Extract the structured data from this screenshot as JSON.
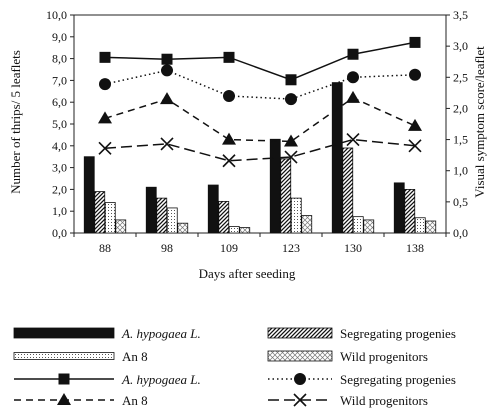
{
  "chart_data": {
    "type": "bar",
    "categories": [
      "88",
      "98",
      "109",
      "123",
      "130",
      "138"
    ],
    "xlabel": "Days after seeding",
    "ylabel_left": "Number of thrips/ 5 leaflets",
    "ylabel_right": "Visual symptom score/leaflet",
    "ylim_left": [
      0,
      10
    ],
    "ylim_right": [
      0,
      3.5
    ],
    "yticks_left": [
      "0,0",
      "1,0",
      "2,0",
      "3,0",
      "4,0",
      "5,0",
      "6,0",
      "7,0",
      "8,0",
      "9,0",
      "10,0"
    ],
    "yticks_right": [
      "0,0",
      "0,5",
      "1,0",
      "1,5",
      "2,0",
      "2,5",
      "3,0",
      "3,5"
    ],
    "bar_series": [
      {
        "name": "A. hypogaea L.",
        "italic": true,
        "pattern": "solid",
        "values": [
          3.5,
          2.1,
          2.2,
          4.3,
          6.9,
          2.3
        ]
      },
      {
        "name": "Segregating progenies",
        "italic": false,
        "pattern": "diag",
        "values": [
          1.9,
          1.6,
          1.45,
          3.4,
          3.9,
          2.0
        ]
      },
      {
        "name": "An 8",
        "italic": false,
        "pattern": "dots",
        "values": [
          1.4,
          1.15,
          0.3,
          1.6,
          0.75,
          0.7
        ]
      },
      {
        "name": "Wild progenitors",
        "italic": false,
        "pattern": "cross",
        "values": [
          0.6,
          0.45,
          0.25,
          0.8,
          0.6,
          0.55
        ]
      }
    ],
    "line_series": [
      {
        "name": "A. hypogaea L.",
        "italic": true,
        "marker": "square",
        "dash": "solid",
        "values": [
          2.82,
          2.79,
          2.82,
          2.46,
          2.87,
          3.06
        ]
      },
      {
        "name": "Segregating progenies",
        "italic": false,
        "marker": "circle",
        "dash": "dotted",
        "values": [
          2.39,
          2.61,
          2.2,
          2.15,
          2.5,
          2.54
        ]
      },
      {
        "name": "An 8",
        "italic": false,
        "marker": "triangle",
        "dash": "dashed",
        "values": [
          1.84,
          2.15,
          1.5,
          1.47,
          2.17,
          1.72
        ]
      },
      {
        "name": "Wild progenitors",
        "italic": false,
        "marker": "x",
        "dash": "longdash",
        "values": [
          1.36,
          1.43,
          1.16,
          1.22,
          1.5,
          1.4
        ]
      }
    ]
  },
  "legend": {
    "bars_left": [
      {
        "label": "A. hypogaea L.",
        "italic": true,
        "series": 0
      },
      {
        "label": "An 8",
        "italic": false,
        "series": 2
      }
    ],
    "bars_right": [
      {
        "label": "Segregating progenies",
        "italic": false,
        "series": 1
      },
      {
        "label": "Wild progenitors",
        "italic": false,
        "series": 3
      }
    ],
    "lines_left": [
      {
        "label": "A. hypogaea L.",
        "italic": true,
        "series": 0
      },
      {
        "label": "An 8",
        "italic": false,
        "series": 2
      }
    ],
    "lines_right": [
      {
        "label": "Segregating progenies",
        "italic": false,
        "series": 1
      },
      {
        "label": "Wild progenitors",
        "italic": false,
        "series": 3
      }
    ]
  }
}
